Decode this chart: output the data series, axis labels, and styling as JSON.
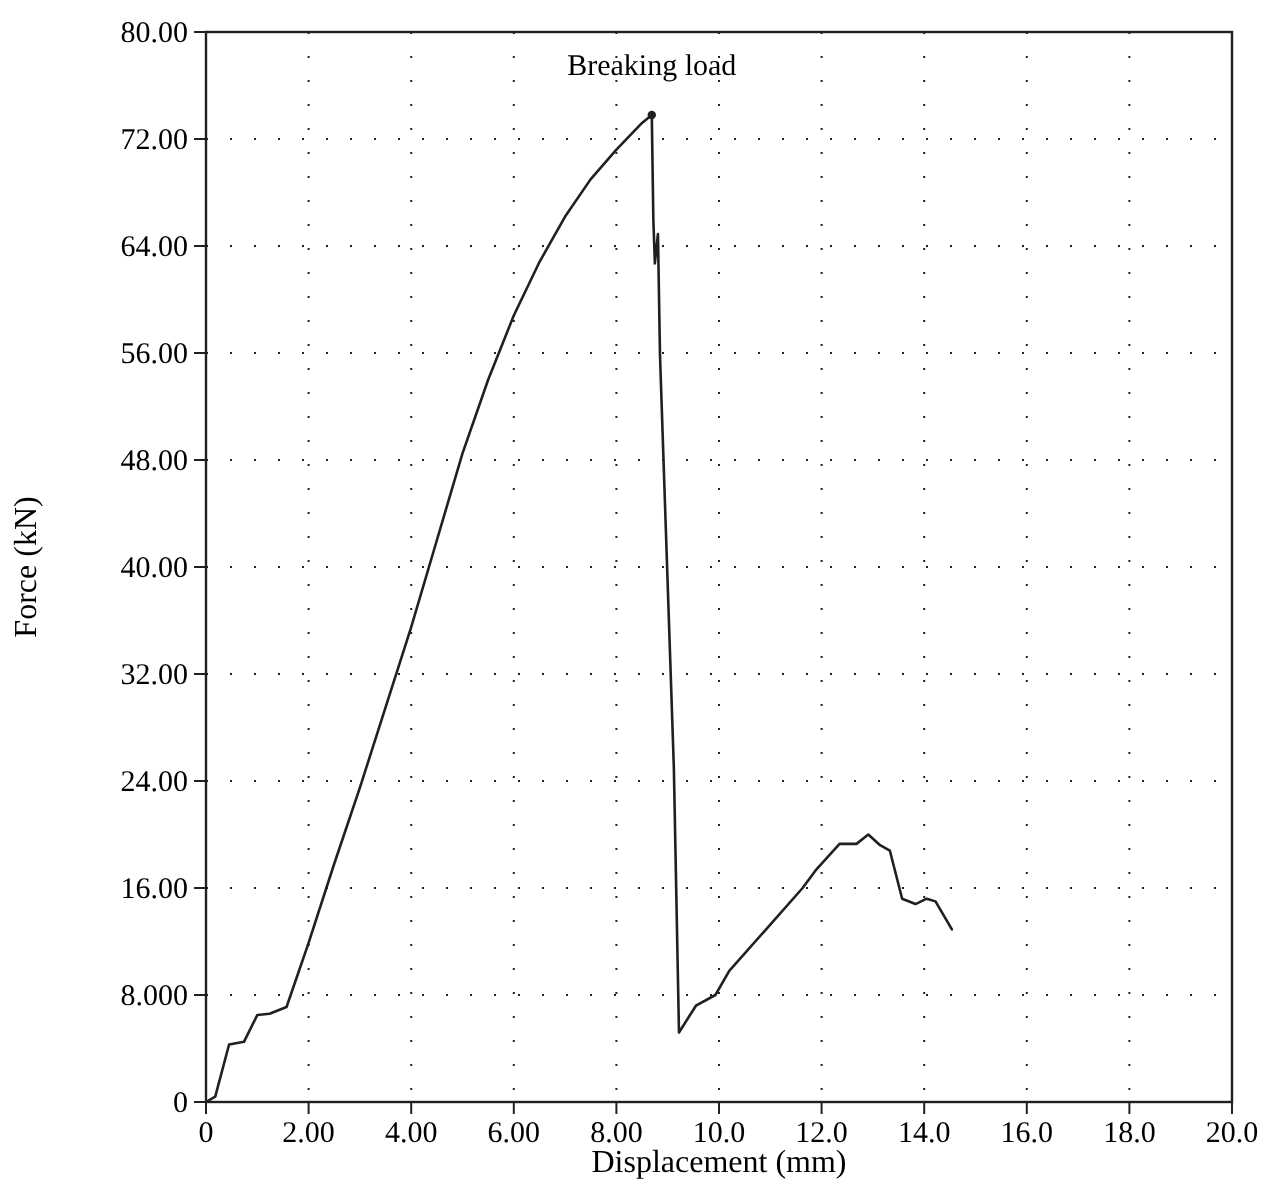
{
  "chart_data": {
    "type": "line",
    "xlabel": "Displacement (mm)",
    "ylabel": "Force (kN)",
    "xlim": [
      0,
      20
    ],
    "ylim": [
      0,
      80
    ],
    "xticks": [
      0,
      {
        "value": 2,
        "label": "2.00"
      },
      {
        "value": 4,
        "label": "4.00"
      },
      {
        "value": 6,
        "label": "6.00"
      },
      {
        "value": 8,
        "label": "8.00"
      },
      {
        "value": 10,
        "label": "10.0"
      },
      {
        "value": 12,
        "label": "12.0"
      },
      {
        "value": 14,
        "label": "14.0"
      },
      {
        "value": 16,
        "label": "16.0"
      },
      {
        "value": 18,
        "label": "18.0"
      },
      {
        "value": 20,
        "label": "20.0"
      }
    ],
    "yticks": [
      0,
      {
        "value": 8,
        "label": "8.000"
      },
      {
        "value": 16,
        "label": "16.00"
      },
      {
        "value": 24,
        "label": "24.00"
      },
      {
        "value": 32,
        "label": "32.00"
      },
      {
        "value": 40,
        "label": "40.00"
      },
      {
        "value": 48,
        "label": "48.00"
      },
      {
        "value": 56,
        "label": "56.00"
      },
      {
        "value": 64,
        "label": "64.00"
      },
      {
        "value": 72,
        "label": "72.00"
      },
      {
        "value": 80,
        "label": "80.00"
      }
    ],
    "grid": true,
    "marker": "none",
    "line_style": "solid",
    "series": [
      {
        "color": "#231f20",
        "x": [
          0,
          0.18,
          0.45,
          0.74,
          1.0,
          1.24,
          1.57,
          2.0,
          2.49,
          3.0,
          3.5,
          4.0,
          4.5,
          5.0,
          5.5,
          6.0,
          6.5,
          7.0,
          7.5,
          8.0,
          8.5,
          8.69,
          8.72,
          8.75,
          8.81,
          8.85,
          9.12,
          9.22,
          9.55,
          9.93,
          10.2,
          11.63,
          11.9,
          12.35,
          12.68,
          12.91,
          13.14,
          13.33,
          13.57,
          13.83,
          14.05,
          14.22,
          14.54
        ],
        "values": [
          0,
          0.4,
          4.3,
          4.5,
          6.5,
          6.6,
          7.1,
          11.9,
          17.7,
          23.5,
          29.5,
          35.5,
          42,
          48.5,
          54,
          58.8,
          62.8,
          66.2,
          69,
          71.2,
          73.2,
          73.8,
          66,
          62.7,
          64.9,
          55.8,
          25,
          5.2,
          7.2,
          8.0,
          9.8,
          16.0,
          17.4,
          19.3,
          19.3,
          20.0,
          19.2,
          18.8,
          15.2,
          14.8,
          15.2,
          15.0,
          12.9
        ]
      },
      {
        "type": "scatter",
        "marker": "circle",
        "color": "#231f20",
        "x": [
          8.69
        ],
        "values": [
          73.8
        ]
      }
    ],
    "annotations": [
      {
        "text": "Breaking load",
        "x": 8.69,
        "y": 73.8
      }
    ]
  }
}
